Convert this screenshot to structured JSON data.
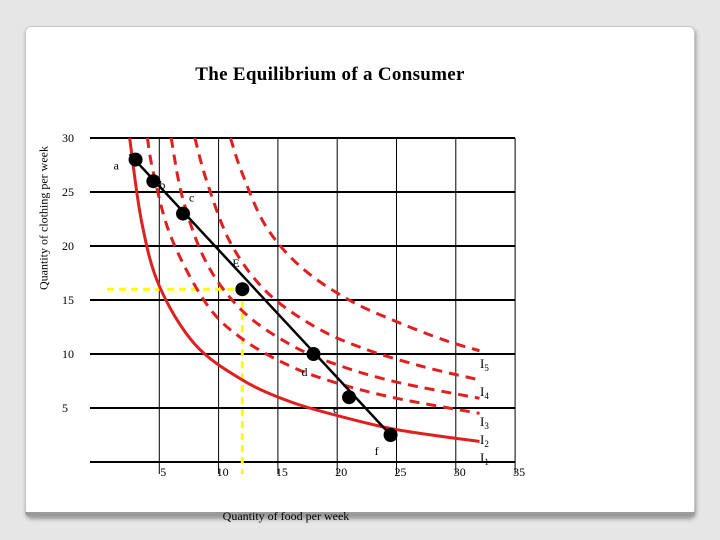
{
  "chart_data": {
    "type": "line",
    "title": "The Equilibrium of a Consumer",
    "xlabel": "Quantity of food per week",
    "ylabel": "Quantity of clothing per week",
    "xlim": [
      0,
      35
    ],
    "ylim": [
      0,
      30
    ],
    "x_ticks": [
      "5",
      "10",
      "15",
      "20",
      "25",
      "30",
      "35"
    ],
    "y_ticks": [
      "30",
      "25",
      "20",
      "15",
      "10",
      "5"
    ],
    "grid": "horizontal and vertical",
    "budget_line": {
      "color": "#000000",
      "x": [
        2.5,
        24.5
      ],
      "y": [
        28.5,
        2.5
      ]
    },
    "points": [
      {
        "label": "a",
        "x": 3,
        "y": 28
      },
      {
        "label": "b",
        "x": 4.5,
        "y": 26
      },
      {
        "label": "c",
        "x": 7,
        "y": 23
      },
      {
        "label": "E",
        "x": 12,
        "y": 16
      },
      {
        "label": "d",
        "x": 18,
        "y": 10
      },
      {
        "label": "e",
        "x": 21,
        "y": 6
      },
      {
        "label": "f",
        "x": 24.5,
        "y": 2.5
      }
    ],
    "equilibrium_guides": {
      "color": "#ffff00",
      "x": 12,
      "y": 16
    },
    "series": [
      {
        "name": "I1",
        "style": "solid",
        "color": "#e02020",
        "x": [
          2.5,
          3.5,
          5,
          8,
          12,
          16,
          20,
          25,
          32
        ],
        "y": [
          30,
          22.3,
          16.3,
          10.9,
          7.6,
          5.6,
          4.3,
          3.0,
          1.9
        ]
      },
      {
        "name": "I2",
        "style": "dashed",
        "color": "#e02020",
        "x": [
          4,
          4.5,
          6,
          9,
          12,
          16,
          20,
          25,
          32
        ],
        "y": [
          30,
          26.8,
          20.8,
          14.6,
          11.4,
          8.9,
          7.3,
          5.9,
          4.5
        ]
      },
      {
        "name": "I3",
        "style": "dashed",
        "color": "#e02020",
        "x": [
          6,
          7,
          9,
          12,
          16,
          20,
          25,
          32
        ],
        "y": [
          30,
          24.3,
          18.4,
          14.0,
          10.9,
          9.0,
          7.4,
          5.9
        ]
      },
      {
        "name": "I4",
        "style": "dashed",
        "color": "#e02020",
        "x": [
          8,
          9,
          11,
          14,
          18,
          22,
          27,
          32
        ],
        "y": [
          30,
          26.0,
          20.3,
          15.8,
          12.6,
          10.6,
          8.9,
          7.6
        ]
      },
      {
        "name": "I5",
        "style": "dashed",
        "color": "#e02020",
        "x": [
          11,
          12,
          14,
          17,
          21,
          25,
          29,
          32
        ],
        "y": [
          30,
          26.7,
          21.8,
          18.0,
          15.0,
          13.0,
          11.3,
          10.3
        ]
      }
    ]
  }
}
